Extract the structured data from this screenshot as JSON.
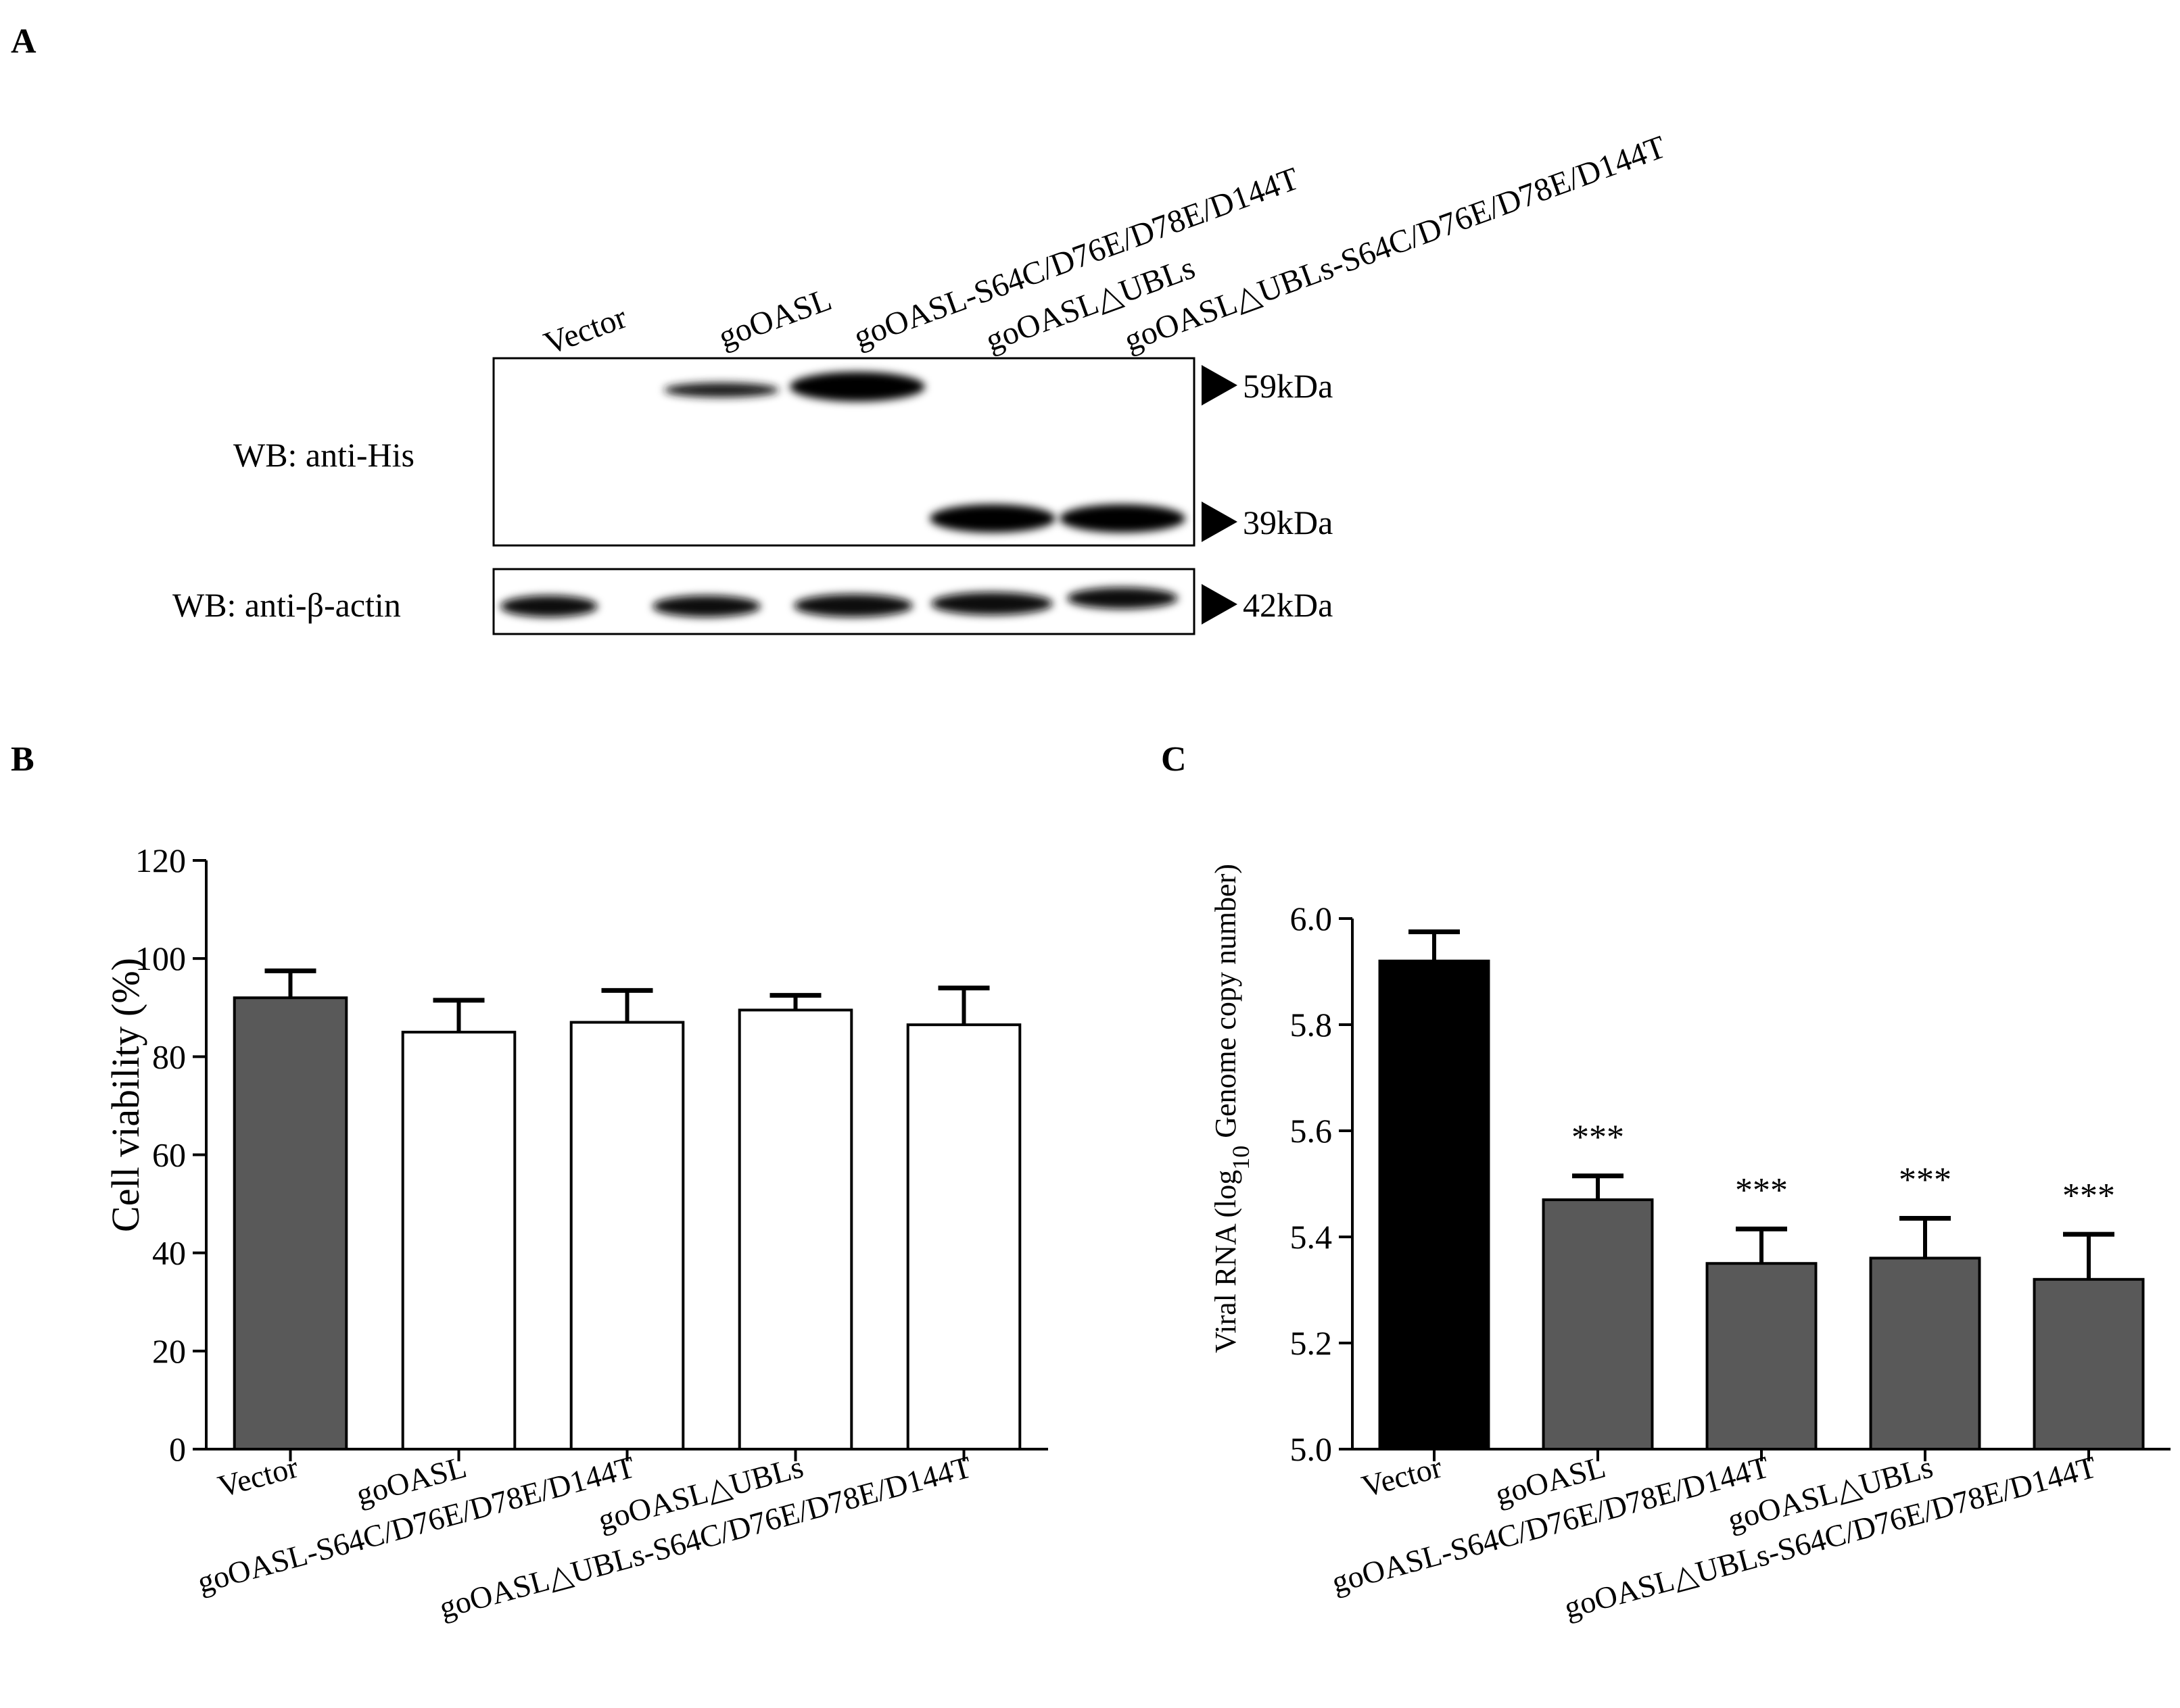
{
  "panels": {
    "a": {
      "letter": "A",
      "lanes": [
        "Vector",
        "goOASL",
        "goOASL-S64C/D76E/D78E/D144T",
        "goOASL△UBLs",
        "goOASL△UBLs-S64C/D76E/D78E/D144T"
      ],
      "blot_his_label": "WB: anti-His",
      "blot_actin_label": "WB: anti-β-actin",
      "markers": [
        "59kDa",
        "39kDa",
        "42kDa"
      ]
    },
    "b": {
      "letter": "B"
    },
    "c": {
      "letter": "C"
    }
  },
  "chart_data": [
    {
      "panel": "B",
      "type": "bar",
      "categories": [
        "Vector",
        "goOASL",
        "goOASL-S64C/D76E/D78E/D144T",
        "goOASL△UBLs",
        "goOASL△UBLs-S64C/D76E/D78E/D144T"
      ],
      "values": [
        92,
        85,
        87,
        89.5,
        86.5
      ],
      "errors": [
        5.5,
        6.5,
        6.5,
        3,
        7.5
      ],
      "bar_colors": [
        "#595959",
        "#ffffff",
        "#ffffff",
        "#ffffff",
        "#ffffff"
      ],
      "ylabel": "Cell viability (%)",
      "ylim": [
        0,
        120
      ],
      "yticks": [
        0,
        20,
        40,
        60,
        80,
        100,
        120
      ],
      "significance": [
        "",
        "",
        "",
        "",
        ""
      ]
    },
    {
      "panel": "C",
      "type": "bar",
      "categories": [
        "Vector",
        "goOASL",
        "goOASL-S64C/D76E/D78E/D144T",
        "goOASL△UBLs",
        "goOASL△UBLs-S64C/D76E/D78E/D144T"
      ],
      "values": [
        5.92,
        5.47,
        5.35,
        5.36,
        5.32
      ],
      "errors": [
        0.055,
        0.045,
        0.065,
        0.075,
        0.085
      ],
      "bar_colors": [
        "#000000",
        "#595959",
        "#595959",
        "#595959",
        "#595959"
      ],
      "ylabel_main": "Viral RNA (log",
      "ylabel_sub": "10",
      "ylabel_tail": " Genome copy number)",
      "ylim": [
        5.0,
        6.0
      ],
      "yticks": [
        "5.0",
        "5.2",
        "5.4",
        "5.6",
        "5.8",
        "6.0"
      ],
      "significance": [
        "",
        "***",
        "***",
        "***",
        "***"
      ]
    }
  ]
}
